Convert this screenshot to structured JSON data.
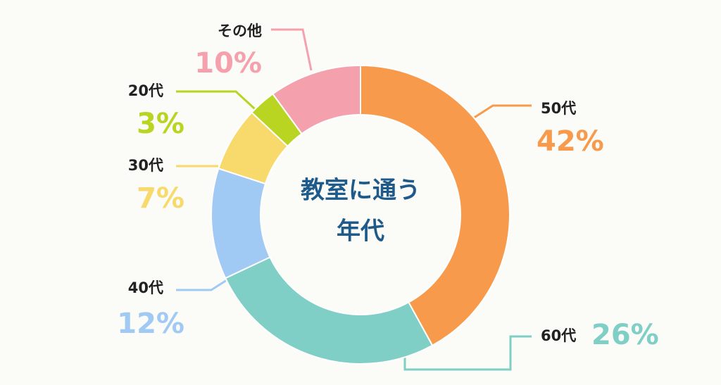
{
  "chart_data": {
    "type": "donut",
    "title": [
      "教室に通う",
      "年代"
    ],
    "categories": [
      "50代",
      "60代",
      "40代",
      "30代",
      "20代",
      "その他"
    ],
    "values": [
      42,
      26,
      12,
      7,
      3,
      10
    ],
    "value_labels": [
      "42%",
      "26%",
      "12%",
      "7%",
      "3%",
      "10%"
    ],
    "colors": [
      "#f89a4c",
      "#7fcfc6",
      "#a0c9f4",
      "#f8d96c",
      "#b9d421",
      "#f5a1ad"
    ]
  }
}
